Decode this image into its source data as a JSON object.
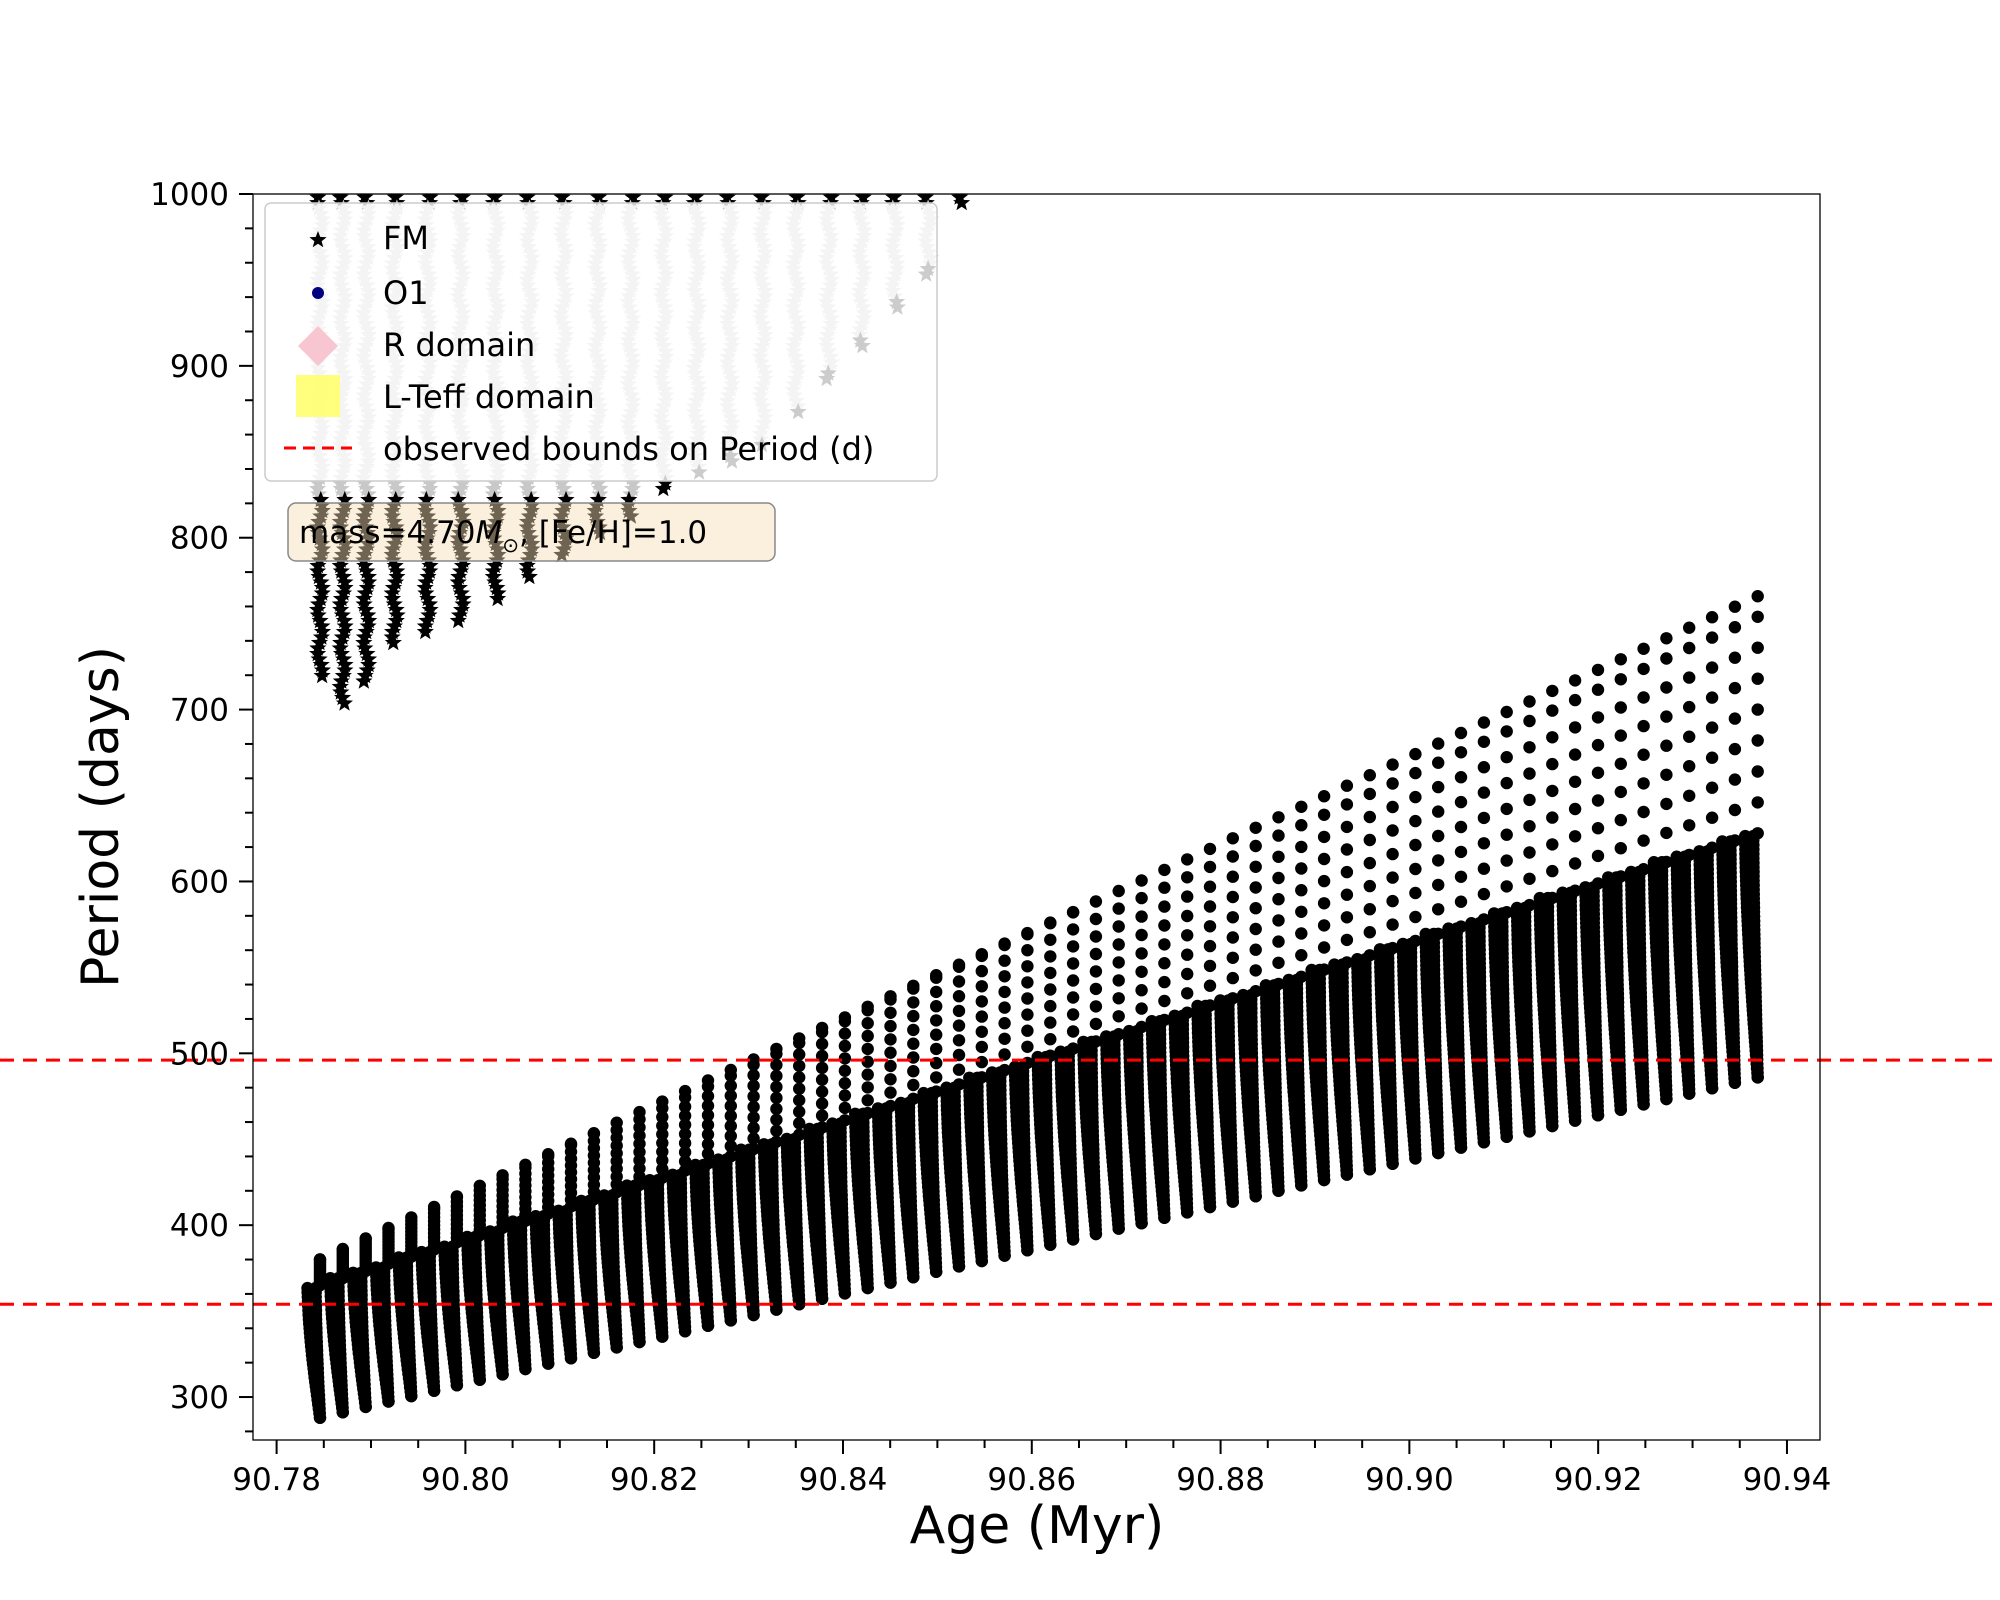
{
  "chart_data": {
    "type": "scatter",
    "title": "",
    "xlabel": "Age (Myr)",
    "ylabel": "Period (days)",
    "xlim": [
      90.7775,
      90.9435
    ],
    "ylim": [
      275,
      1000
    ],
    "xticks": [
      90.78,
      90.8,
      90.82,
      90.84,
      90.86,
      90.88,
      90.9,
      90.92,
      90.94
    ],
    "xtick_labels": [
      "90.78",
      "90.80",
      "90.82",
      "90.84",
      "90.86",
      "90.88",
      "90.90",
      "90.92",
      "90.94"
    ],
    "yticks": [
      300,
      400,
      500,
      600,
      700,
      800,
      900,
      1000
    ],
    "ytick_labels": [
      "300",
      "400",
      "500",
      "600",
      "700",
      "800",
      "900",
      "1000"
    ],
    "observed_bounds": [
      496,
      354
    ],
    "annotation": {
      "text_before": "mass=4.70",
      "mass_symbol": "M",
      "sun_symbol": "⊙",
      "text_after": ", [Fe/H]=1.0"
    },
    "legend": {
      "position": "upper-left",
      "entries": [
        {
          "label": "FM",
          "marker": "star",
          "color": "#000000"
        },
        {
          "label": "O1",
          "marker": "circle",
          "color": "#000080"
        },
        {
          "label": "R domain",
          "marker": "diamond",
          "color": "#f7c6d0"
        },
        {
          "label": "L-Teff domain",
          "marker": "square",
          "color": "#ffff66"
        },
        {
          "label": "observed bounds on Period (d)",
          "marker": "dashed-line",
          "color": "#ff0000"
        }
      ]
    },
    "series": [
      {
        "name": "O1",
        "marker": "circle",
        "color": "#000080",
        "description": "pulsation loops from age 90.7846 to 90.9369 Myr",
        "loops": {
          "count": 64,
          "x_start": 90.7846,
          "x_end": 90.9369,
          "dense_bottom": [
            288,
            486
          ],
          "dense_top": [
            365,
            628
          ],
          "peak": [
            380,
            766
          ],
          "fade": [
            1,
            18
          ]
        }
      },
      {
        "name": "FM",
        "marker": "star",
        "color": "#000000",
        "faded_color": "#c8c8c8",
        "description": "star columns from the top of the axis down to minimum period",
        "columns": [
          {
            "x": 90.7846,
            "min": 718
          },
          {
            "x": 90.787,
            "min": 703
          },
          {
            "x": 90.7895,
            "min": 716
          },
          {
            "x": 90.7925,
            "min": 738
          },
          {
            "x": 90.796,
            "min": 745
          },
          {
            "x": 90.7995,
            "min": 749
          },
          {
            "x": 90.8032,
            "min": 763
          },
          {
            "x": 90.8068,
            "min": 775
          },
          {
            "x": 90.8104,
            "min": 788
          },
          {
            "x": 90.814,
            "min": 800
          },
          {
            "x": 90.8175,
            "min": 812
          },
          {
            "x": 90.821,
            "min": 826
          },
          {
            "x": 90.8245,
            "min": 835
          },
          {
            "x": 90.828,
            "min": 843
          },
          {
            "x": 90.8315,
            "min": 851
          },
          {
            "x": 90.835,
            "min": 870
          },
          {
            "x": 90.8385,
            "min": 890
          },
          {
            "x": 90.842,
            "min": 910
          },
          {
            "x": 90.8455,
            "min": 933
          },
          {
            "x": 90.849,
            "min": 952
          },
          {
            "x": 90.8525,
            "min": 993
          }
        ],
        "black_band": [
          775,
          825
        ]
      }
    ]
  }
}
